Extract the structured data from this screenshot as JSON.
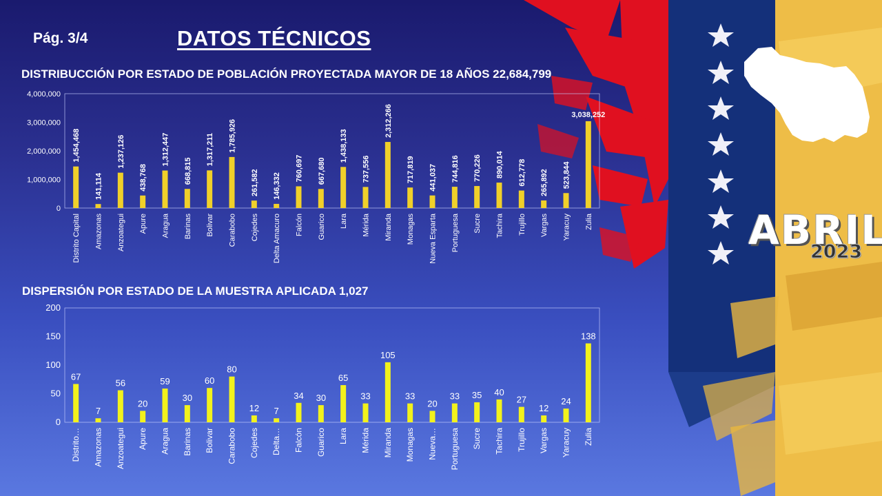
{
  "header": {
    "page": "Pág.  3/4",
    "title": "DATOS TÉCNICOS"
  },
  "banner": {
    "month": "ABRIL",
    "year": "2023"
  },
  "colors": {
    "bar1": "#f0d02a",
    "bar2": "#f2f21c",
    "flag_red": "#e01020",
    "flag_blue": "#14307a",
    "flag_yellow": "#f0c040"
  },
  "chart_data": [
    {
      "type": "bar",
      "title": "DISTRIBUCCIÓN POR ESTADO DE POBLACIÓN PROYECTADA MAYOR DE 18 AÑOS 22,684,799",
      "categories": [
        "Distrito Capital",
        "Amazonas",
        "Anzoategui",
        "Apure",
        "Aragua",
        "Barinas",
        "Bolivar",
        "Carabobo",
        "Cojedes",
        "Delta Amacuro",
        "Falcón",
        "Guarico",
        "Lara",
        "Mérida",
        "Miranda",
        "Monagas",
        "Nueva Esparta",
        "Portuguesa",
        "Sucre",
        "Tachira",
        "Trujillo",
        "Vargas",
        "Yaracuy",
        "Zulia"
      ],
      "values": [
        1454468,
        141114,
        1237126,
        438768,
        1312447,
        668815,
        1317211,
        1785926,
        261582,
        146332,
        760697,
        667680,
        1438133,
        737556,
        2312266,
        717819,
        441037,
        744816,
        770226,
        890014,
        612778,
        265892,
        523844,
        3038252
      ],
      "value_labels": [
        "1,454,468",
        "141,114",
        "1,237,126",
        "438,768",
        "1,312,447",
        "668,815",
        "1,317,211",
        "1,785,926",
        "261,582",
        "146,332",
        "760,697",
        "667,680",
        "1,438,133",
        "737,556",
        "2,312,266",
        "717,819",
        "441,037",
        "744,816",
        "770,226",
        "890,014",
        "612,778",
        "265,892",
        "523,844",
        "3,038,252"
      ],
      "yticks": [
        "0",
        "1,000,000",
        "2,000,000",
        "3,000,000",
        "4,000,000"
      ],
      "ylim": [
        0,
        4000000
      ],
      "xlabel": "",
      "ylabel": ""
    },
    {
      "type": "bar",
      "title": "DISPERSIÓN POR ESTADO DE LA MUESTRA APLICADA 1,027",
      "categories": [
        "Distrito…",
        "Amazonas",
        "Anzoategui",
        "Apure",
        "Aragua",
        "Barinas",
        "Bolivar",
        "Carabobo",
        "Cojedes",
        "Delta…",
        "Falcón",
        "Guarico",
        "Lara",
        "Mérida",
        "Miranda",
        "Monagas",
        "Nueva…",
        "Portuguesa",
        "Sucre",
        "Tachira",
        "Trujillo",
        "Vargas",
        "Yaracuy",
        "Zulia"
      ],
      "values": [
        67,
        7,
        56,
        20,
        59,
        30,
        60,
        80,
        12,
        7,
        34,
        30,
        65,
        33,
        105,
        33,
        20,
        33,
        35,
        40,
        27,
        12,
        24,
        138
      ],
      "value_labels": [
        "67",
        "7",
        "56",
        "20",
        "59",
        "30",
        "60",
        "80",
        "12",
        "7",
        "34",
        "30",
        "65",
        "33",
        "105",
        "33",
        "20",
        "33",
        "35",
        "40",
        "27",
        "12",
        "24",
        "138"
      ],
      "yticks": [
        "0",
        "50",
        "100",
        "150",
        "200"
      ],
      "ylim": [
        0,
        200
      ],
      "xlabel": "",
      "ylabel": ""
    }
  ]
}
